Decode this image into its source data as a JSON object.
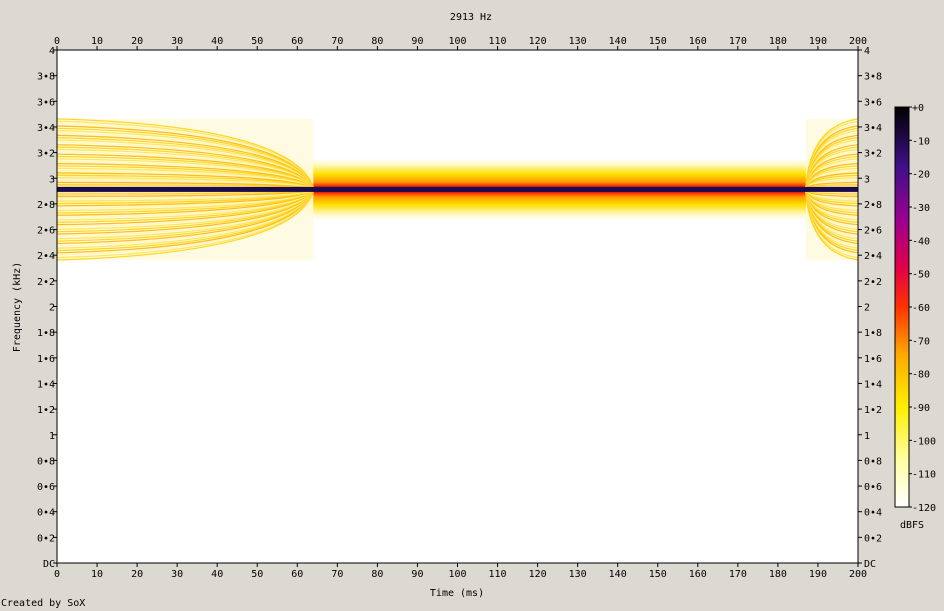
{
  "chart_data": {
    "type": "heatmap",
    "title": "2913 Hz",
    "xlabel": "Time (ms)",
    "ylabel": "Frequency (kHz)",
    "xlim": [
      0,
      200
    ],
    "ylim": [
      0,
      4
    ],
    "x_ticks": [
      "0",
      "10",
      "20",
      "30",
      "40",
      "50",
      "60",
      "70",
      "80",
      "90",
      "100",
      "110",
      "120",
      "130",
      "140",
      "150",
      "160",
      "170",
      "180",
      "190",
      "200"
    ],
    "y_ticks": [
      "DC",
      "0•2",
      "0•4",
      "0•6",
      "0•8",
      "1",
      "1•2",
      "1•4",
      "1•6",
      "1•8",
      "2",
      "2•2",
      "2•4",
      "2•6",
      "2•8",
      "3",
      "3•2",
      "3•4",
      "3•6",
      "3•8",
      "4"
    ],
    "colorbar": {
      "label": "dBFS",
      "range": [
        -120,
        0
      ],
      "ticks": [
        "+0",
        "-10",
        "-20",
        "-30",
        "-40",
        "-50",
        "-60",
        "-70",
        "-80",
        "-90",
        "-100",
        "-110",
        "-120"
      ]
    },
    "tone": {
      "frequency_khz": 2.913,
      "level_dbfs": 0,
      "start_ms": 0,
      "end_ms": 200,
      "transient_regions_ms": [
        [
          0,
          64
        ],
        [
          187,
          200
        ]
      ]
    }
  },
  "footer": {
    "credit": "Created by SoX"
  }
}
